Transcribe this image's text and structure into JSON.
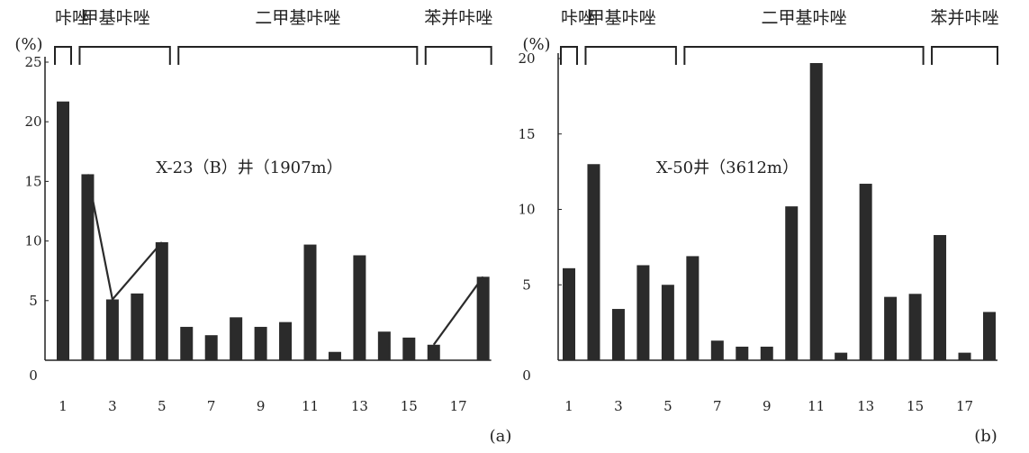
{
  "chart_data": [
    {
      "type": "bar",
      "panel_label": "(a)",
      "unit_label": "(%)",
      "annotation": "X-23（B）井（1907m）",
      "x": [
        1,
        2,
        3,
        4,
        5,
        6,
        7,
        8,
        9,
        10,
        11,
        12,
        13,
        14,
        15,
        16,
        17,
        18
      ],
      "values": [
        21.7,
        15.6,
        5.1,
        5.6,
        9.9,
        2.8,
        2.1,
        3.6,
        2.8,
        3.2,
        9.7,
        0.7,
        8.8,
        2.4,
        1.9,
        1.3,
        0,
        7.0
      ],
      "x_tick_labels": [
        "1",
        "3",
        "5",
        "7",
        "9",
        "11",
        "13",
        "15",
        "17"
      ],
      "y_tick_labels": [
        "0",
        "5",
        "10",
        "15",
        "20",
        "25"
      ],
      "ylim": [
        0,
        25
      ],
      "groups": [
        {
          "label": "咔唑",
          "from": 1,
          "to": 1
        },
        {
          "label": "甲基咔唑",
          "from": 2,
          "to": 5
        },
        {
          "label": "二甲基咔唑",
          "from": 6,
          "to": 15
        },
        {
          "label": "苯并咔唑",
          "from": 16,
          "to": 18
        }
      ],
      "trend_lines": [
        {
          "points": [
            [
              2,
              15.6
            ],
            [
              3,
              5.1
            ],
            [
              5,
              9.9
            ]
          ]
        },
        {
          "points": [
            [
              16,
              1.3
            ],
            [
              18,
              7.0
            ]
          ]
        }
      ]
    },
    {
      "type": "bar",
      "panel_label": "(b)",
      "unit_label": "(%)",
      "annotation": "X-50井（3612m）",
      "x": [
        1,
        2,
        3,
        4,
        5,
        6,
        7,
        8,
        9,
        10,
        11,
        12,
        13,
        14,
        15,
        16,
        17,
        18
      ],
      "values": [
        6.1,
        13.0,
        3.4,
        6.3,
        5.0,
        6.9,
        1.3,
        0.9,
        0.9,
        10.2,
        19.7,
        0.5,
        11.7,
        4.2,
        4.4,
        8.3,
        0.5,
        3.2
      ],
      "x_tick_labels": [
        "1",
        "3",
        "5",
        "7",
        "9",
        "11",
        "13",
        "15",
        "17"
      ],
      "y_tick_labels": [
        "0",
        "5",
        "10",
        "15",
        "20"
      ],
      "ylim": [
        0,
        20
      ],
      "groups": [
        {
          "label": "咔唑",
          "from": 1,
          "to": 1
        },
        {
          "label": "甲基咔唑",
          "from": 2,
          "to": 5
        },
        {
          "label": "二甲基咔唑",
          "from": 6,
          "to": 15
        },
        {
          "label": "苯并咔唑",
          "from": 16,
          "to": 18
        }
      ],
      "trend_lines": []
    }
  ]
}
